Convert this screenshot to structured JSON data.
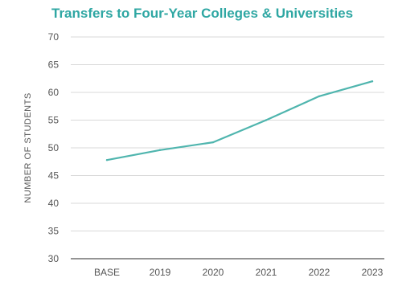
{
  "chart_data": {
    "type": "line",
    "title": "Transfers to Four-Year Colleges & Universities",
    "xlabel": "",
    "ylabel": "NUMBER OF STUDENTS",
    "categories": [
      "BASE",
      "2019",
      "2020",
      "2021",
      "2022",
      "2023"
    ],
    "series": [
      {
        "values": [
          47.8,
          49.6,
          51.0,
          55.0,
          59.3,
          62.0
        ]
      }
    ],
    "ylim": [
      30,
      70
    ],
    "yticks": [
      "30",
      "35",
      "40",
      "45",
      "50",
      "55",
      "60",
      "65",
      "70"
    ],
    "grid": "horizontal",
    "legend": "none"
  },
  "colors": {
    "title": "#2fa7a3",
    "line": "#4fb5ae",
    "grid": "#d9d9d9",
    "baseline": "#555555"
  }
}
